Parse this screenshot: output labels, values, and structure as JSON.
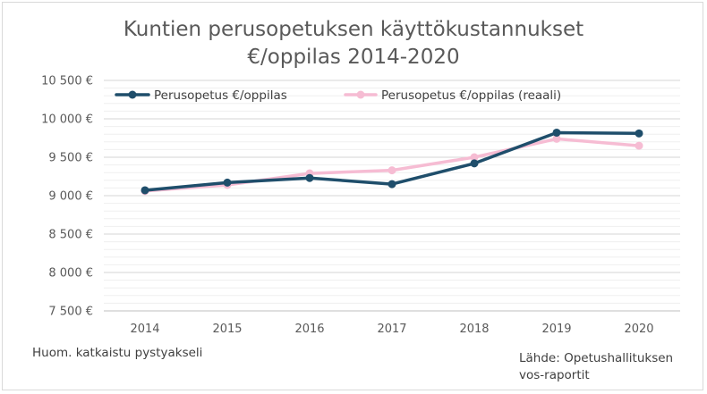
{
  "chart_data": {
    "type": "line",
    "title_line1": "Kuntien perusopetuksen käyttökustannukset",
    "title_line2": "€/oppilas 2014-2020",
    "categories": [
      "2014",
      "2015",
      "2016",
      "2017",
      "2018",
      "2019",
      "2020"
    ],
    "series": [
      {
        "name": "Perusopetus €/oppilas",
        "color": "#1f4e6b",
        "values": [
          9070,
          9170,
          9230,
          9150,
          9420,
          9820,
          9810
        ]
      },
      {
        "name": "Perusopetus €/oppilas (reaali)",
        "color": "#f6bcd3",
        "values": [
          9060,
          9140,
          9290,
          9330,
          9500,
          9740,
          9650
        ]
      }
    ],
    "ylim": [
      7500,
      10500
    ],
    "yticks": [
      7500,
      8000,
      8500,
      9000,
      9500,
      10000,
      10500
    ],
    "ytick_labels": [
      "7 500 €",
      "8 000 €",
      "8 500 €",
      "9 000 €",
      "9 500 €",
      "10 000 €",
      "10 500 €"
    ],
    "grid": true,
    "legend_position": "top-left"
  },
  "notes": {
    "axis_note": "Huom. katkaistu pystyakseli",
    "source_line1": "Lähde: Opetushallituksen",
    "source_line2": "vos-raportit"
  }
}
